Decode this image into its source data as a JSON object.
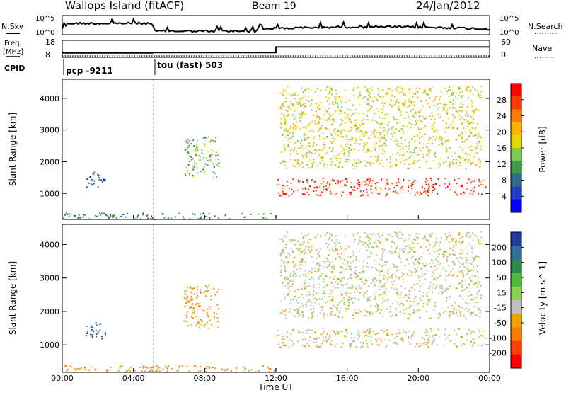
{
  "header": {
    "station": "Wallops Island (fitACF)",
    "beam": "Beam 19",
    "date": "24/Jan/2012"
  },
  "strip_noise": {
    "left_label": "N.Sky",
    "right_label": "N.Search",
    "left_ticks": [
      "10^5",
      "10^0"
    ],
    "right_ticks": [
      "10^5",
      "10^0"
    ]
  },
  "strip_freq": {
    "left_label_1": "Freq.",
    "left_label_2": "[MHz]",
    "right_label": "Nave",
    "left_ticks": [
      "18",
      "8"
    ],
    "right_ticks": [
      "60",
      "0"
    ],
    "freq_mhz_steps": [
      {
        "from_hour": 0,
        "to_hour": 5.1,
        "value": 9.7
      },
      {
        "from_hour": 5.1,
        "to_hour": 12.0,
        "value": 10.0
      },
      {
        "from_hour": 12.0,
        "to_hour": 24.0,
        "value": 14.5
      }
    ]
  },
  "strip_cpid": {
    "label": "CPID",
    "programs": [
      {
        "name": "pcp -9211",
        "start_hour": 0
      },
      {
        "name": "tou (fast) 503",
        "start_hour": 5.1
      }
    ]
  },
  "power_panel": {
    "ylabel": "Slant Range [km]",
    "yticks": [
      "4000",
      "3000",
      "2000",
      "1000"
    ],
    "colorbar_title": "Power [dB]",
    "colorbar_ticks": [
      "28",
      "24",
      "20",
      "16",
      "12",
      "8",
      "4"
    ],
    "colors": [
      "#ff0000",
      "#ff3c00",
      "#ff7a00",
      "#ffb000",
      "#e4d400",
      "#7fc84a",
      "#3c9a4a",
      "#2c6c88",
      "#1e3cc8",
      "#0000ff"
    ]
  },
  "velocity_panel": {
    "ylabel": "Slant Range [km]",
    "yticks": [
      "4000",
      "3000",
      "2000",
      "1000"
    ],
    "colorbar_title": "Velocity [m s^-1]",
    "colorbar_ticks": [
      "200",
      "100",
      "50",
      "15",
      "-15",
      "-50",
      "-100",
      "-200"
    ],
    "colors": [
      "#1e3ca0",
      "#2e6e9c",
      "#2e8a4c",
      "#4cb83c",
      "#88d44c",
      "#c0c0c0",
      "#f0a000",
      "#ff7a00",
      "#ff4000",
      "#ff0000"
    ]
  },
  "xaxis": {
    "ticks": [
      "00:00",
      "04:00",
      "08:00",
      "12:00",
      "16:00",
      "20:00",
      "00:00"
    ],
    "label": "Time UT"
  },
  "chart_data": {
    "type": "heatmap",
    "x_range_hours": [
      0,
      24
    ],
    "y_range_km": [
      180,
      4600
    ],
    "echo_regions": [
      {
        "desc": "F-region ground/ionospheric scatter band",
        "t_start": 12,
        "t_end": 23.8,
        "range_km": [
          950,
          1500
        ],
        "power_db": 28,
        "velocity_ms": -5
      },
      {
        "desc": "Upper arcs",
        "t_start": 12.2,
        "t_end": 23.5,
        "range_km": [
          1800,
          4400
        ],
        "power_db": 18,
        "velocity_ms": 0
      },
      {
        "desc": "Night-side scatter patch",
        "t_start": 1.2,
        "t_end": 2.4,
        "range_km": [
          1200,
          1700
        ],
        "power_db": 8,
        "velocity_ms": 150
      },
      {
        "desc": "Morning patches",
        "t_start": 6.8,
        "t_end": 8.8,
        "range_km": [
          1500,
          2800
        ],
        "power_db": 14,
        "velocity_ms": -40
      },
      {
        "desc": "Near-range E-region clutter",
        "t_start": 0,
        "t_end": 12,
        "range_km": [
          200,
          400
        ],
        "power_db": 10,
        "velocity_ms": -50
      }
    ]
  }
}
